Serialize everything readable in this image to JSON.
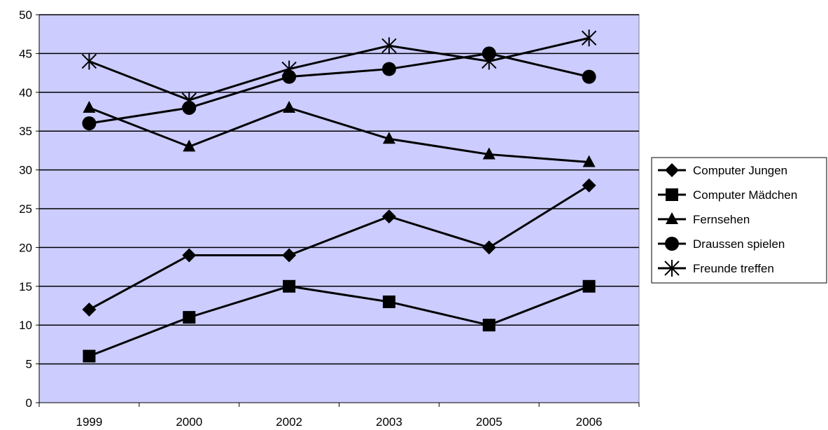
{
  "chart_data": {
    "type": "line",
    "categories": [
      "1999",
      "2000",
      "2002",
      "2003",
      "2005",
      "2006"
    ],
    "ylim": [
      0,
      50
    ],
    "yticks": [
      0,
      5,
      10,
      15,
      20,
      25,
      30,
      35,
      40,
      45,
      50
    ],
    "grid": true,
    "plot_background": "#ccccff",
    "line_color": "#000000",
    "legend_position": "right",
    "series": [
      {
        "name": "Computer Jungen",
        "marker": "diamond",
        "values": [
          12,
          19,
          19,
          24,
          20,
          28
        ]
      },
      {
        "name": "Computer Mädchen",
        "marker": "square",
        "values": [
          6,
          11,
          15,
          13,
          10,
          15
        ]
      },
      {
        "name": "Fernsehen",
        "marker": "triangle",
        "values": [
          38,
          33,
          38,
          34,
          32,
          31
        ]
      },
      {
        "name": "Draussen spielen",
        "marker": "circle",
        "values": [
          36,
          38,
          42,
          43,
          45,
          42
        ]
      },
      {
        "name": "Freunde treffen",
        "marker": "asterisk",
        "values": [
          44,
          39,
          43,
          46,
          44,
          47
        ]
      }
    ]
  }
}
